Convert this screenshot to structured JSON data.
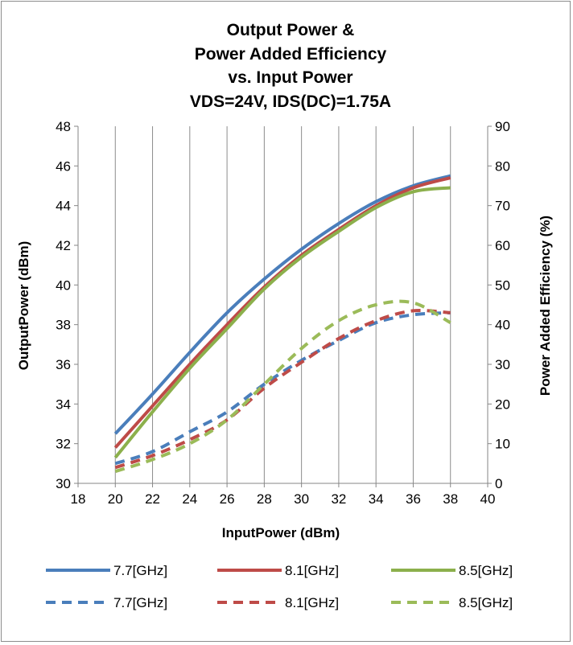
{
  "chart_data": {
    "type": "line",
    "title_lines": [
      "Output Power &",
      "Power Added Efficiency",
      "vs. Input Power",
      "VDS=24V, IDS(DC)=1.75A"
    ],
    "xlabel": "InputPower  (dBm)",
    "ylabel_left": "OutputPower (dBm)",
    "ylabel_right": "Power Added Efficiency (%)",
    "xlim": [
      18,
      40
    ],
    "ylim_left": [
      30,
      48
    ],
    "ylim_right": [
      0,
      90
    ],
    "x_ticks": [
      18,
      20,
      22,
      24,
      26,
      28,
      30,
      32,
      34,
      36,
      38,
      40
    ],
    "y_left_ticks": [
      30,
      32,
      34,
      36,
      38,
      40,
      42,
      44,
      46,
      48
    ],
    "y_right_ticks": [
      0,
      10,
      20,
      30,
      40,
      50,
      60,
      70,
      80,
      90
    ],
    "grid": "vertical",
    "legend_position": "bottom",
    "x": [
      20,
      22,
      24,
      26,
      28,
      30,
      32,
      34,
      36,
      38
    ],
    "series": [
      {
        "name": "7.7[GHz]",
        "axis": "left",
        "style": "solid",
        "color": "#4a7ebb",
        "values": [
          32.5,
          34.5,
          36.6,
          38.6,
          40.3,
          41.8,
          43.1,
          44.2,
          45.0,
          45.5
        ]
      },
      {
        "name": "8.1[GHz]",
        "axis": "left",
        "style": "solid",
        "color": "#be4b48",
        "values": [
          31.8,
          33.9,
          36.0,
          38.0,
          39.9,
          41.5,
          42.8,
          44.0,
          44.9,
          45.4
        ]
      },
      {
        "name": "8.5[GHz]",
        "axis": "left",
        "style": "solid",
        "color": "#8cb04c",
        "values": [
          31.3,
          33.6,
          35.8,
          37.8,
          39.8,
          41.4,
          42.7,
          43.9,
          44.7,
          44.9
        ]
      },
      {
        "name": "7.7[GHz]",
        "axis": "right",
        "style": "dashed",
        "color": "#4a7ebb",
        "values": [
          5,
          8,
          13,
          18,
          25,
          31,
          36,
          40.5,
          42.5,
          43
        ]
      },
      {
        "name": "8.1[GHz]",
        "axis": "right",
        "style": "dashed",
        "color": "#be4b48",
        "values": [
          4,
          7,
          11,
          16,
          24,
          30.5,
          36.5,
          41,
          43.5,
          43
        ]
      },
      {
        "name": "8.5[GHz]",
        "axis": "right",
        "style": "dashed",
        "color": "#9bbb59",
        "values": [
          3,
          6,
          10,
          16,
          25,
          34,
          41,
          45,
          45.5,
          40.5
        ]
      }
    ]
  }
}
